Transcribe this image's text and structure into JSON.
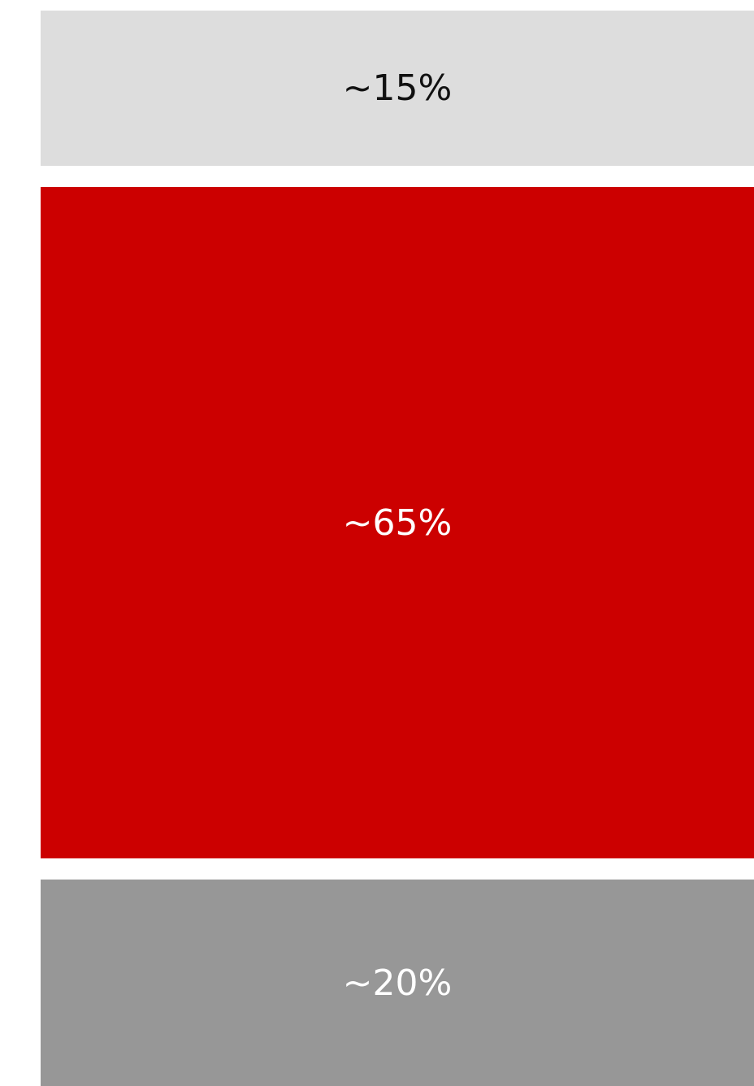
{
  "segments": [
    {
      "label": "~15%",
      "value": 15,
      "color": "#dddddd",
      "text_color": "#111111"
    },
    {
      "label": "~65%",
      "value": 65,
      "color": "#cc0000",
      "text_color": "#ffffff"
    },
    {
      "label": "~20%",
      "value": 20,
      "color": "#979797",
      "text_color": "#ffffff"
    }
  ]
}
